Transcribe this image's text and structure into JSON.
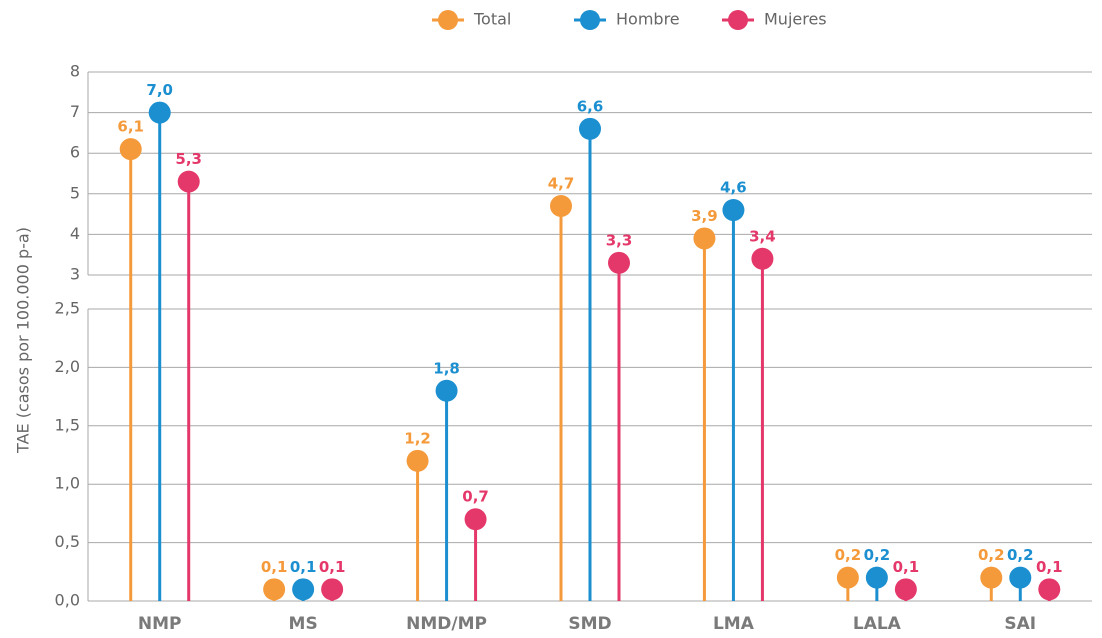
{
  "chart_data": {
    "type": "lollipop",
    "y_label": "TAE (casos por 100.000 p-a)",
    "categories": [
      "NMP",
      "MS",
      "NMD/MP",
      "SMD",
      "LMA",
      "LALA",
      "SAI"
    ],
    "series": [
      {
        "name": "Total",
        "color": "#f59a3b",
        "values": [
          6.1,
          0.1,
          1.2,
          4.7,
          3.9,
          0.2,
          0.2
        ],
        "value_labels": [
          "6,1",
          "0,1",
          "1,2",
          "4,7",
          "3,9",
          "0,2",
          "0,2"
        ]
      },
      {
        "name": "Hombre",
        "color": "#1b8fd0",
        "values": [
          7.0,
          0.1,
          1.8,
          6.6,
          4.6,
          0.2,
          0.2
        ],
        "value_labels": [
          "7,0",
          "0,1",
          "1,8",
          "6,6",
          "4,6",
          "0,2",
          "0,2"
        ]
      },
      {
        "name": "Mujeres",
        "color": "#e5386a",
        "values": [
          5.3,
          0.1,
          0.7,
          3.3,
          3.4,
          0.1,
          0.1
        ],
        "value_labels": [
          "5,3",
          "0,1",
          "0,7",
          "3,3",
          "3,4",
          "0,1",
          "0,1"
        ]
      }
    ],
    "ylim": [
      0,
      8
    ],
    "axis_break": [
      2.5,
      3
    ],
    "yticks": [
      {
        "value": 0,
        "label": "0,0"
      },
      {
        "value": 0.5,
        "label": "0,5"
      },
      {
        "value": 1,
        "label": "1,0"
      },
      {
        "value": 1.5,
        "label": "1,5"
      },
      {
        "value": 2,
        "label": "2,0"
      },
      {
        "value": 2.5,
        "label": "2,5"
      },
      3,
      4,
      5,
      6,
      7,
      8
    ],
    "grid": true,
    "legend": "top"
  }
}
